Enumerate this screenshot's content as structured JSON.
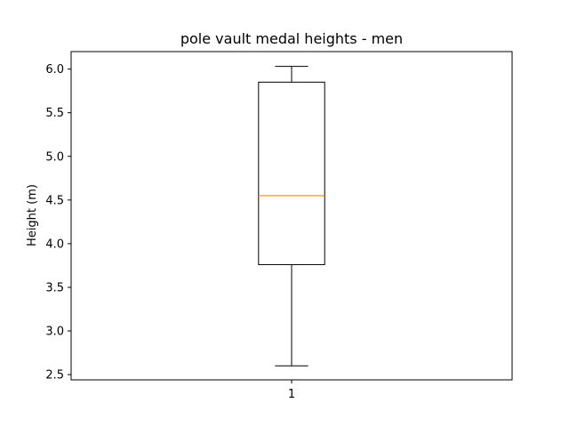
{
  "chart_data": {
    "type": "box",
    "title": "pole vault medal heights - men",
    "xlabel": "",
    "ylabel": "Height (m)",
    "ylim": [
      2.44,
      6.2
    ],
    "categories": [
      "1"
    ],
    "yticks": [
      "2.5",
      "3.0",
      "3.5",
      "4.0",
      "4.5",
      "5.0",
      "5.5",
      "6.0"
    ],
    "boxes": [
      {
        "category": "1",
        "whisker_low": 2.6,
        "q1": 3.76,
        "median": 4.55,
        "q3": 5.85,
        "whisker_high": 6.03
      }
    ],
    "grid": false,
    "colors": {
      "box": "#000000",
      "median": "#ff7f0e",
      "frame": "#000000"
    }
  }
}
